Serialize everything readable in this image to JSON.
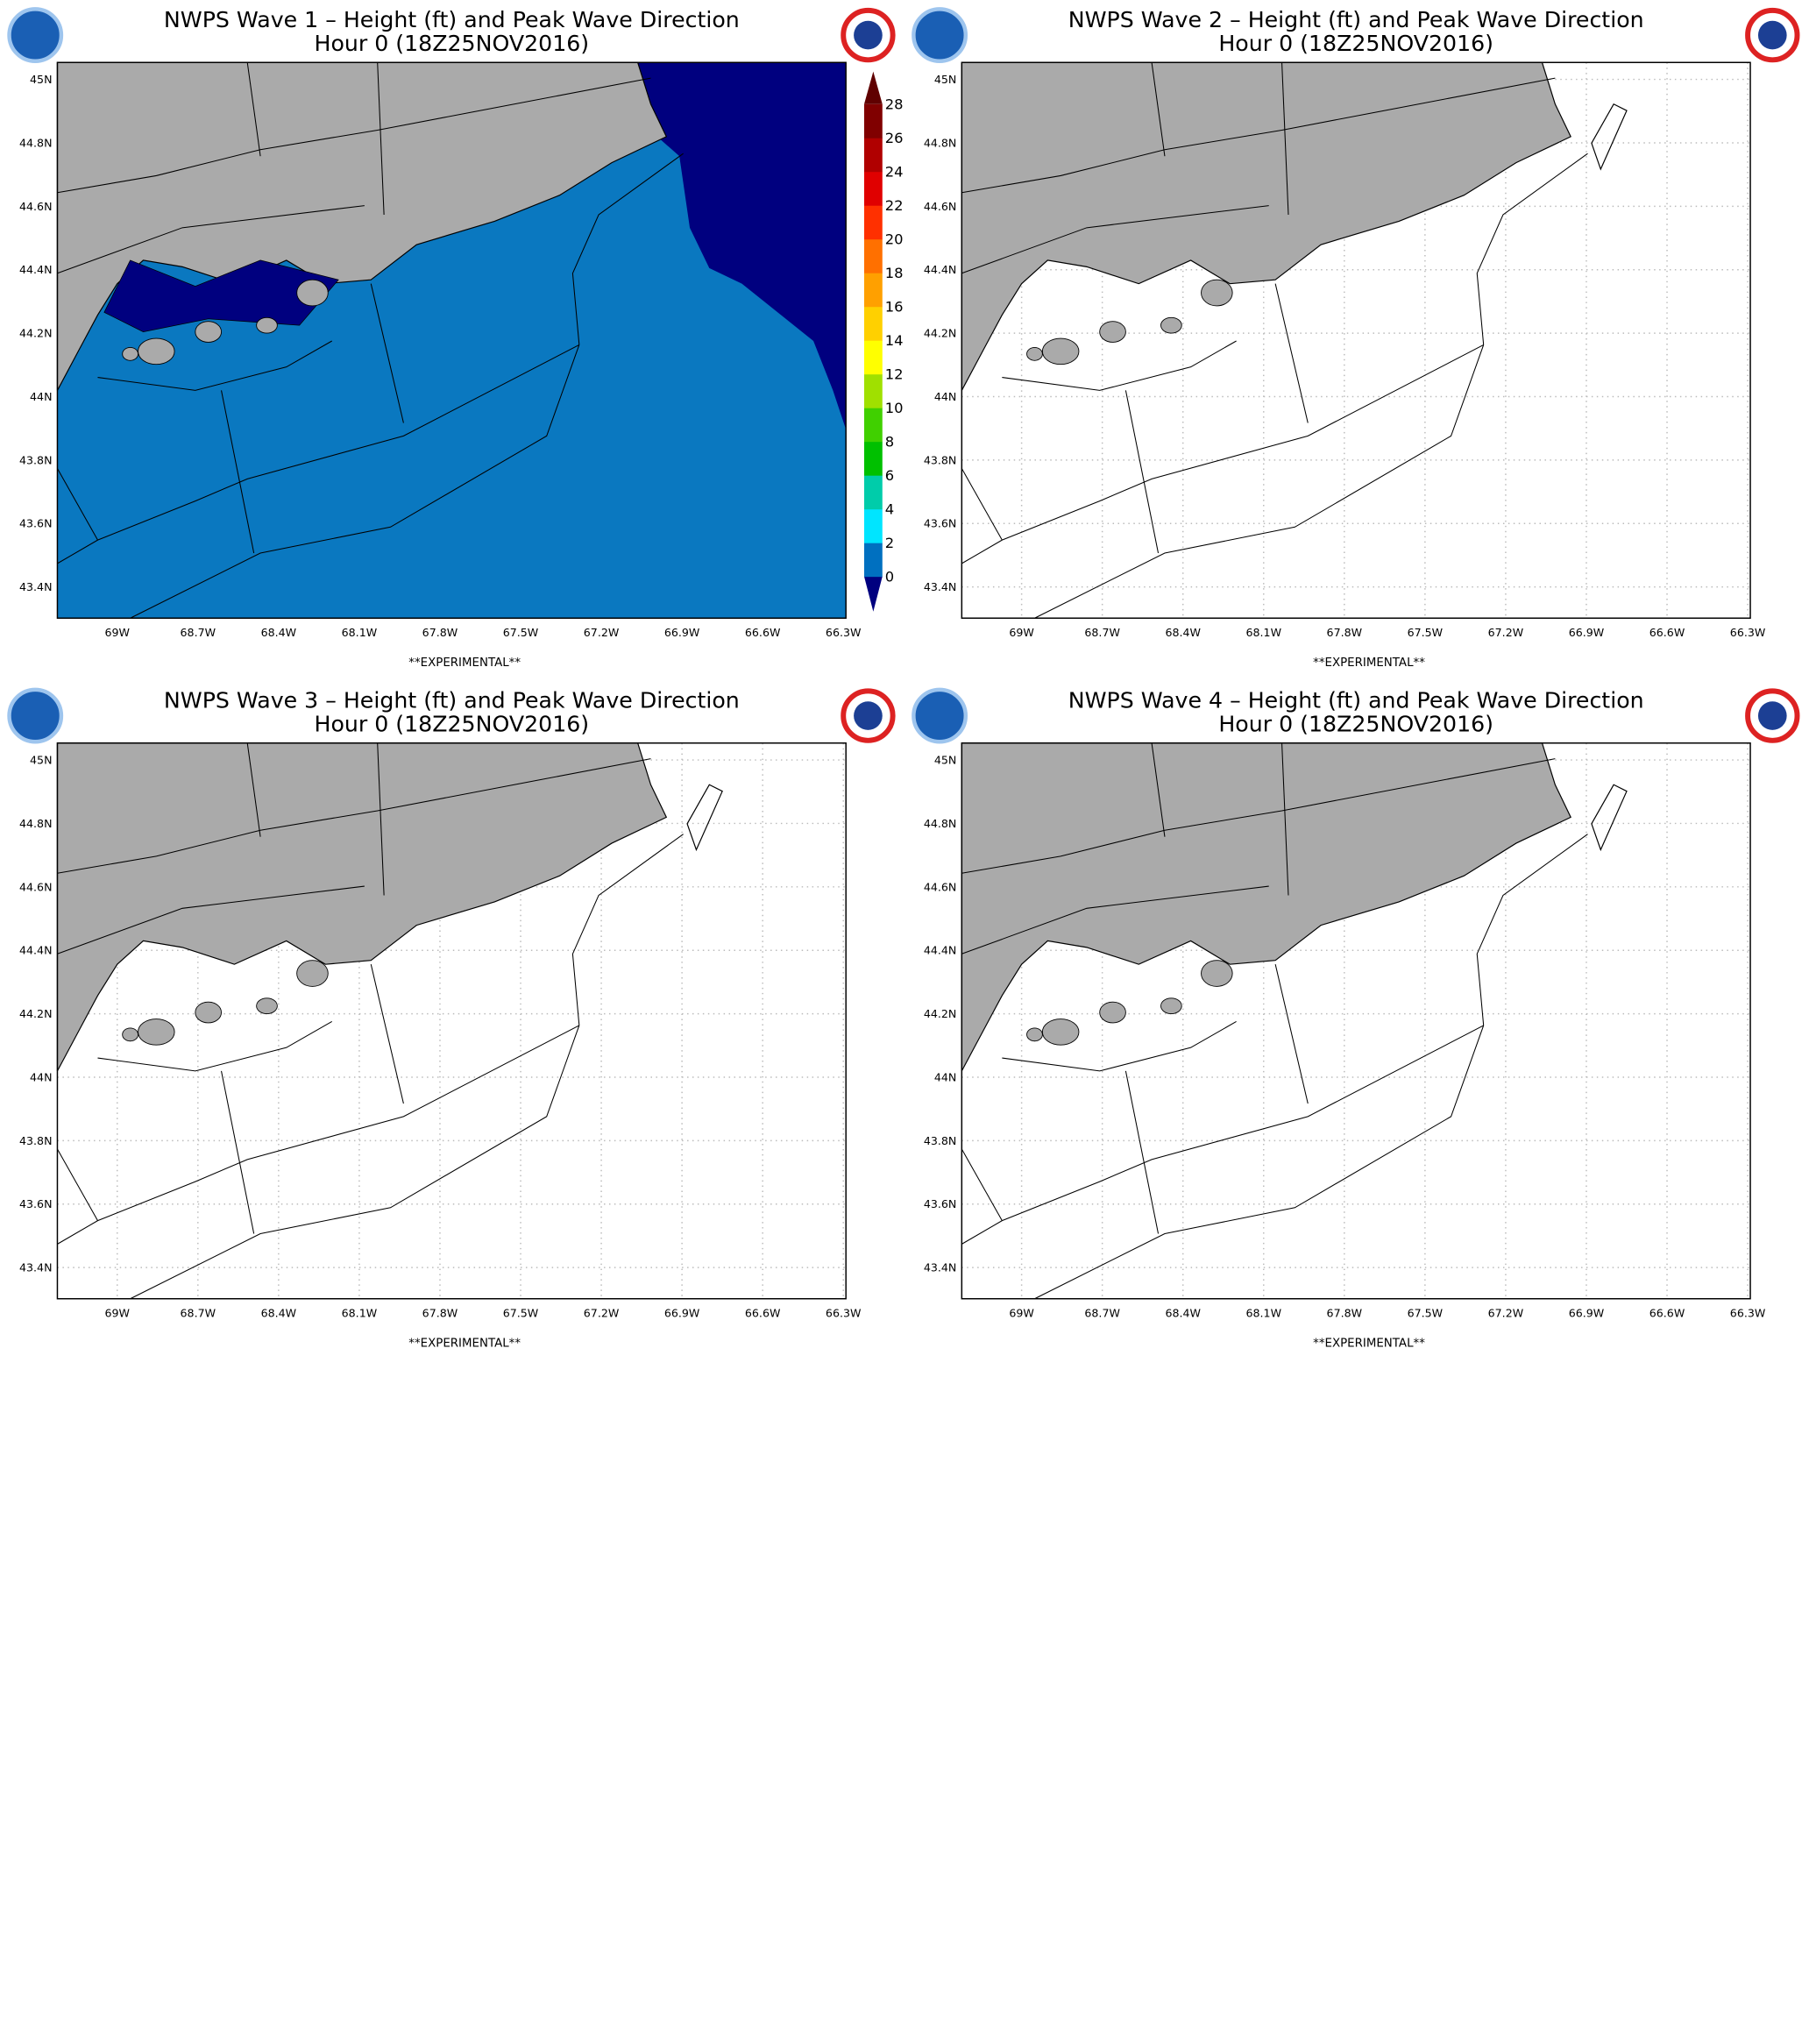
{
  "panels": [
    {
      "title": "NWPS Wave 1 – Height (ft) and Peak Wave Direction",
      "subtitle": "Hour 0 (18Z25NOV2016)",
      "footer": "**EXPERIMENTAL**"
    },
    {
      "title": "NWPS Wave 2 – Height (ft) and Peak Wave Direction",
      "subtitle": "Hour 0 (18Z25NOV2016)",
      "footer": "**EXPERIMENTAL**"
    },
    {
      "title": "NWPS Wave 3 – Height (ft) and Peak Wave Direction",
      "subtitle": "Hour 0 (18Z25NOV2016)",
      "footer": "**EXPERIMENTAL**"
    },
    {
      "title": "NWPS Wave 4 – Height (ft) and Peak Wave Direction",
      "subtitle": "Hour 0 (18Z25NOV2016)",
      "footer": "**EXPERIMENTAL**"
    }
  ],
  "lat_labels": [
    "45N",
    "44.8N",
    "44.6N",
    "44.4N",
    "44.2N",
    "44N",
    "43.8N",
    "43.6N",
    "43.4N"
  ],
  "lon_labels": [
    "69W",
    "68.7W",
    "68.4W",
    "68.1W",
    "67.8W",
    "67.5W",
    "67.2W",
    "66.9W",
    "66.6W",
    "66.3W"
  ],
  "colorbar": {
    "labels": [
      0,
      2,
      4,
      6,
      8,
      10,
      12,
      14,
      16,
      18,
      20,
      22,
      24,
      26,
      28
    ]
  }
}
